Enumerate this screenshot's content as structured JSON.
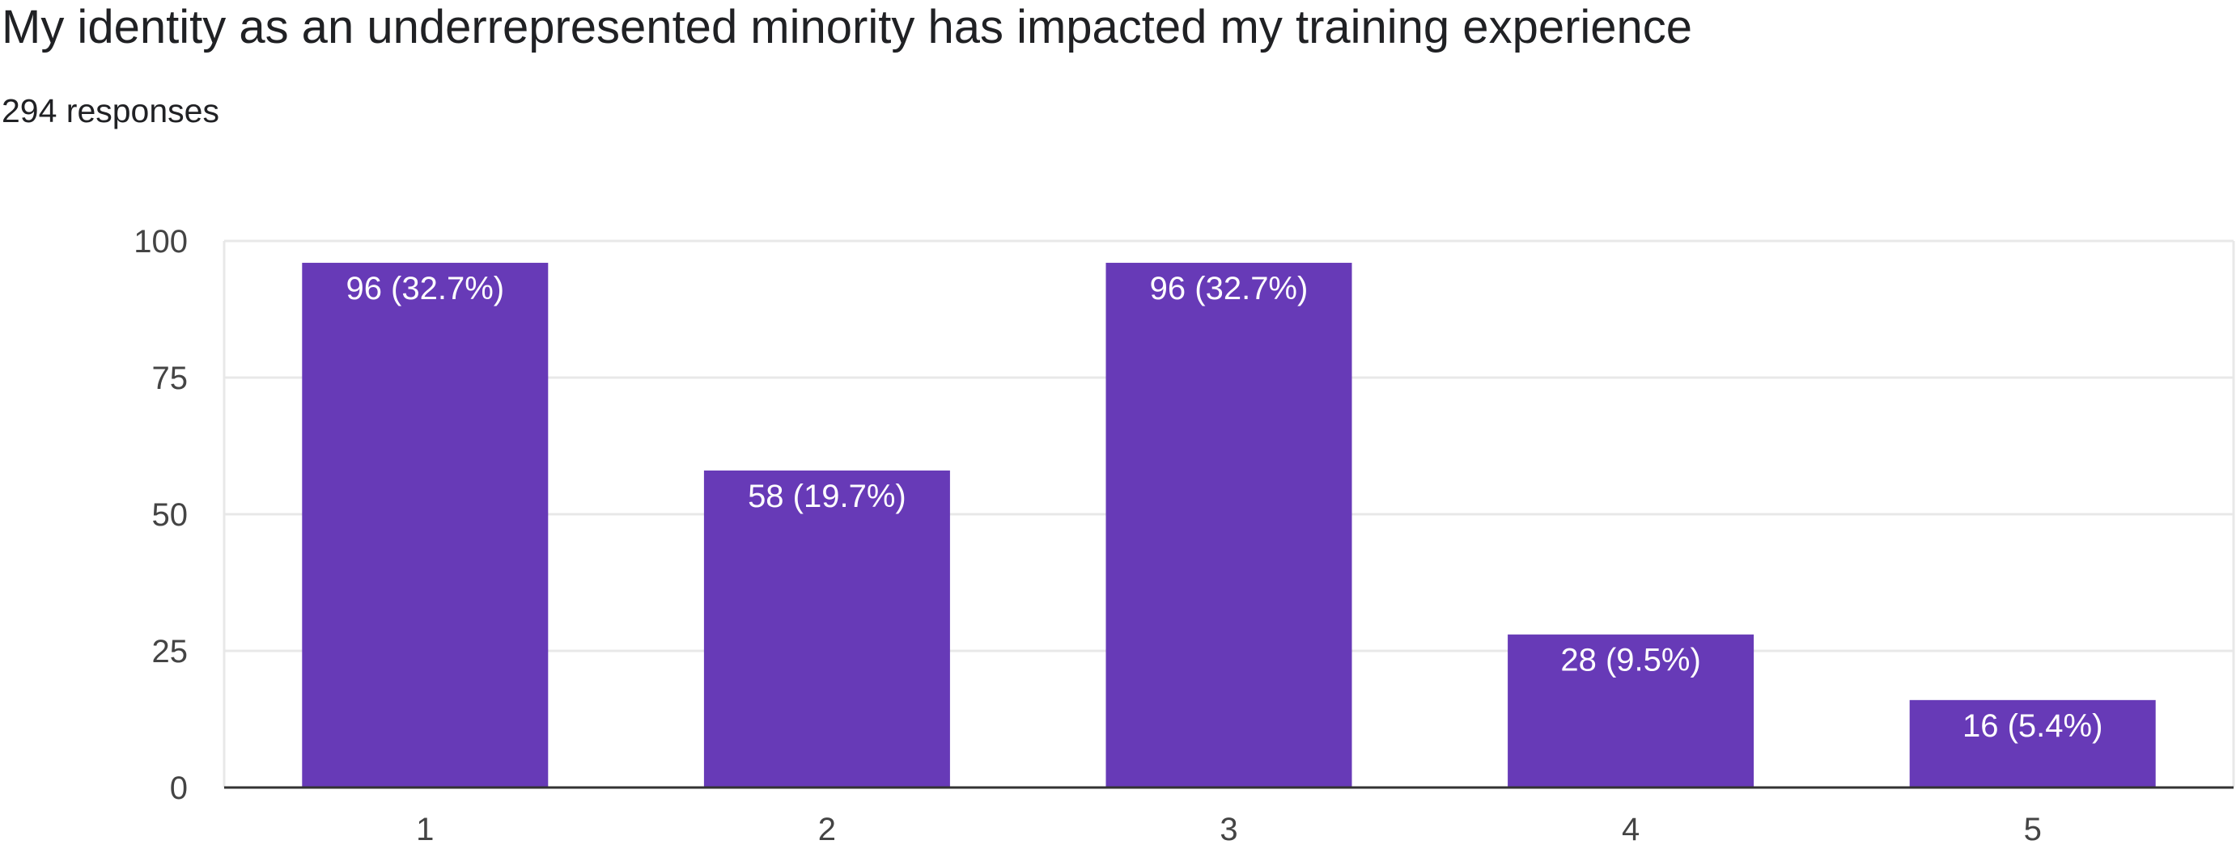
{
  "header": {
    "title": "My identity as an underrepresented minority has impacted my training experience",
    "subtitle": "294 responses"
  },
  "colors": {
    "bar": "#673ab7",
    "grid": "#e8e8e8",
    "axis": "#333333"
  },
  "chart_data": {
    "type": "bar",
    "title": "My identity as an underrepresented minority has impacted my training experience",
    "subtitle": "294 responses",
    "categories": [
      "1",
      "2",
      "3",
      "4",
      "5"
    ],
    "values": [
      96,
      58,
      96,
      28,
      16
    ],
    "data_labels": [
      "96 (32.7%)",
      "58 (19.7%)",
      "96 (32.7%)",
      "28 (9.5%)",
      "16 (5.4%)"
    ],
    "xlabel": "",
    "ylabel": "",
    "ylim": [
      0,
      100
    ],
    "yticks": [
      0,
      25,
      50,
      75,
      100
    ],
    "grid": true,
    "legend": "none"
  }
}
